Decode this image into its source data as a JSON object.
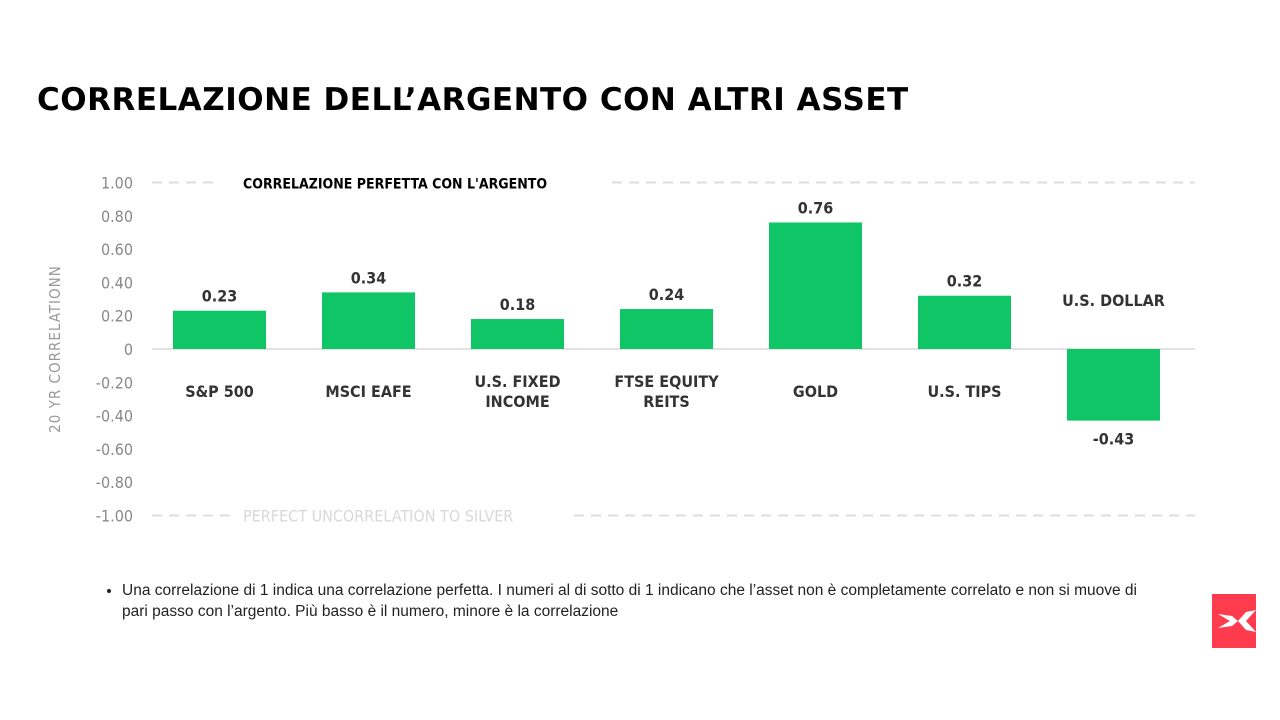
{
  "title": "CORRELAZIONE DELL’ARGENTO CON ALTRI ASSET",
  "chart_data": {
    "type": "bar",
    "title": "",
    "ylabel": "20 YR CORRELATIONN",
    "ylim": [
      -1.0,
      1.0
    ],
    "yticks": [
      "1.00",
      "0.80",
      "0.60",
      "0.40",
      "0.20",
      "0",
      "-0.20",
      "-0.40",
      "-0.60",
      "-0.80",
      "-1.00"
    ],
    "categories": [
      [
        "S&P 500"
      ],
      [
        "MSCI EAFE"
      ],
      [
        "U.S. FIXED",
        "INCOME"
      ],
      [
        "FTSE EQUITY",
        "REITS"
      ],
      [
        "GOLD"
      ],
      [
        "U.S. TIPS"
      ],
      [
        "U.S. DOLLAR"
      ]
    ],
    "values": [
      0.23,
      0.34,
      0.18,
      0.24,
      0.76,
      0.32,
      -0.43
    ],
    "value_labels": [
      "0.23",
      "0.34",
      "0.18",
      "0.24",
      "0.76",
      "0.32",
      "-0.43"
    ],
    "annotations": {
      "top": "CORRELAZIONE PERFETTA CON L'ARGENTO",
      "bottom": "PERFECT UNCORRELATION TO SILVER"
    },
    "bar_color": "#0fc565",
    "grid": false
  },
  "note": "Una correlazione di 1 indica una correlazione perfetta. I numeri al di sotto di 1 indicano che l’asset non è completamente correlato e non si muove di pari passo con l’argento. Più basso è il numero, minore è la correlazione",
  "logo": {
    "text": "X",
    "color": "#ff3b4e"
  }
}
